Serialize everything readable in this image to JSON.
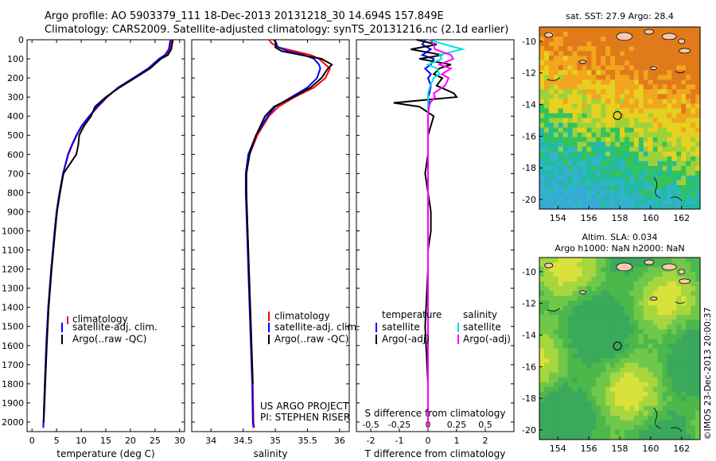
{
  "header": {
    "line1": "Argo profile: AO 5903379_111 18-Dec-2013 20131218_30 14.694S 157.849E",
    "line2": "Climatology: CARS2009. Satellite-adjusted climatology: synTS_20131216.nc (2.1d earlier)"
  },
  "colors": {
    "climatology": "#ff0000",
    "satellite": "#0000ff",
    "argo": "#000000",
    "sat_s": "#00e0e0",
    "argo_s": "#ff00ff"
  },
  "shared_y": {
    "ylim": [
      0,
      2050
    ],
    "ticks": [
      "0",
      "100",
      "200",
      "300",
      "400",
      "500",
      "600",
      "700",
      "800",
      "900",
      "1000",
      "1100",
      "1200",
      "1300",
      "1400",
      "1500",
      "1600",
      "1700",
      "1800",
      "1900",
      "2000"
    ]
  },
  "chart_data": [
    {
      "id": "temperature",
      "type": "line",
      "xlabel": "temperature (deg C)",
      "xlim": [
        -1,
        31
      ],
      "xticks": [
        "0",
        "5",
        "10",
        "15",
        "20",
        "25",
        "30"
      ],
      "legend": {
        "items": [
          "climatology",
          "satellite-adj. clim.",
          "Argo(..raw -QC)"
        ]
      },
      "depth": [
        0,
        20,
        50,
        80,
        100,
        150,
        200,
        250,
        300,
        350,
        400,
        450,
        500,
        550,
        600,
        700,
        800,
        900,
        1000,
        1200,
        1400,
        1600,
        1800,
        2000,
        2030
      ],
      "series": [
        {
          "name": "climatology",
          "values": [
            28.3,
            28.2,
            28.0,
            27.2,
            26.0,
            23.8,
            20.8,
            17.6,
            15.3,
            13.4,
            11.7,
            10.2,
            9.1,
            8.2,
            7.4,
            6.3,
            5.6,
            5.0,
            4.6,
            3.9,
            3.3,
            2.9,
            2.6,
            2.35,
            2.3
          ]
        },
        {
          "name": "satellite-adj. clim.",
          "values": [
            28.1,
            28.0,
            27.8,
            27.0,
            25.8,
            23.6,
            20.6,
            17.5,
            15.2,
            13.3,
            11.6,
            10.1,
            9.0,
            8.1,
            7.3,
            6.3,
            5.6,
            5.0,
            4.6,
            3.9,
            3.3,
            2.9,
            2.6,
            2.35,
            2.3
          ]
        },
        {
          "name": "Argo(..raw -QC)",
          "values": [
            28.6,
            28.5,
            28.3,
            27.6,
            26.2,
            24.0,
            20.9,
            17.8,
            15.0,
            12.8,
            12.0,
            10.6,
            9.6,
            9.4,
            9.0,
            6.4,
            5.7,
            5.1,
            4.7,
            4.0,
            3.4,
            3.0,
            2.7,
            2.4,
            null
          ]
        }
      ]
    },
    {
      "id": "salinity",
      "type": "line",
      "xlabel": "salinity",
      "xlim": [
        33.7,
        36.15
      ],
      "xticks": [
        "34",
        "34.5",
        "35",
        "35.5",
        "36"
      ],
      "legend": {
        "items": [
          "climatology",
          "satellite-adj. clim.",
          "Argo(..raw -QC)"
        ]
      },
      "annotation": [
        "US ARGO PROJECT",
        "PI: STEPHEN RISER"
      ],
      "depth": [
        0,
        20,
        40,
        60,
        80,
        100,
        130,
        150,
        200,
        250,
        300,
        350,
        400,
        500,
        600,
        700,
        800,
        900,
        1000,
        1200,
        1500,
        1800,
        2000,
        2030
      ],
      "series": [
        {
          "name": "climatology",
          "values": [
            34.9,
            34.95,
            35.05,
            35.3,
            35.55,
            35.68,
            35.78,
            35.85,
            35.78,
            35.6,
            35.3,
            35.05,
            34.9,
            34.72,
            34.6,
            34.55,
            34.55,
            34.56,
            34.57,
            34.59,
            34.62,
            34.65,
            34.66,
            34.67
          ]
        },
        {
          "name": "satellite-adj. clim.",
          "values": [
            35.0,
            35.0,
            35.05,
            35.2,
            35.45,
            35.6,
            35.68,
            35.7,
            35.65,
            35.5,
            35.25,
            35.0,
            34.88,
            34.7,
            34.58,
            34.54,
            34.54,
            34.55,
            34.56,
            34.58,
            34.61,
            34.64,
            34.65,
            34.66
          ]
        },
        {
          "name": "Argo(..raw -QC)",
          "values": [
            34.98,
            35.02,
            35.0,
            35.1,
            35.4,
            35.72,
            35.88,
            35.82,
            35.72,
            35.55,
            35.28,
            34.98,
            34.84,
            34.7,
            34.6,
            34.55,
            34.55,
            34.56,
            34.57,
            34.59,
            34.62,
            34.65,
            null,
            null
          ]
        }
      ]
    },
    {
      "id": "differences",
      "type": "line",
      "xlabel": "T difference from climatology",
      "xlabel_top": "S difference from climatology",
      "xlim": [
        -2.5,
        3
      ],
      "xticks": [
        "-2",
        "-1",
        "0",
        "1",
        "2"
      ],
      "xticks_top": [
        "-0.5",
        "-0.25",
        "0",
        "0.25",
        "0.5"
      ],
      "legend": {
        "temperature_title": "temperature",
        "salinity_title": "salinity",
        "temperature_items": [
          "satellite",
          "Argo(-adj)"
        ],
        "salinity_items": [
          "satellite",
          "Argo(-adj)"
        ]
      },
      "depth": [
        0,
        25,
        50,
        80,
        100,
        130,
        150,
        180,
        200,
        240,
        280,
        300,
        330,
        350,
        400,
        500,
        600,
        700,
        800,
        900,
        1000,
        1100,
        1200,
        1500,
        1800,
        2030
      ],
      "series": [
        {
          "name": "T satellite",
          "values": [
            -0.1,
            -0.2,
            0.1,
            -0.2,
            0.2,
            0.1,
            -0.1,
            0.1,
            0.0,
            0.1,
            0.05,
            0.0,
            0.05,
            0.0,
            0.0,
            0.0,
            0.0,
            0.0,
            0.0,
            0.0,
            0.0,
            0.0,
            0.0,
            0.0,
            0.0,
            0.0
          ]
        },
        {
          "name": "T Argo(-adj)",
          "values": [
            -0.4,
            0.3,
            -0.6,
            0.5,
            -0.3,
            0.8,
            0.4,
            0.2,
            0.5,
            0.3,
            0.9,
            1.0,
            -1.2,
            -0.3,
            0.2,
            0.0,
            0.0,
            -0.1,
            0.0,
            0.1,
            0.1,
            0.0,
            0.0,
            -0.1,
            0.0,
            0.0
          ]
        },
        {
          "name": "S satellite",
          "values": [
            0.0,
            0.15,
            0.3,
            0.1,
            0.12,
            0.0,
            0.08,
            0.1,
            0.05,
            0.02,
            0.0,
            0.0,
            0.0,
            0.0,
            0.0,
            0.0,
            0.0,
            0.0,
            0.0,
            0.0,
            0.0,
            0.0,
            0.0,
            0.0,
            0.0,
            0.0
          ]
        },
        {
          "name": "S Argo(-adj)",
          "values": [
            0.02,
            0.05,
            0.06,
            0.2,
            0.22,
            0.1,
            0.2,
            0.12,
            0.18,
            0.15,
            0.05,
            0.06,
            0.02,
            0.01,
            0.0,
            0.0,
            0.0,
            0.0,
            0.0,
            0.0,
            0.0,
            0.0,
            0.0,
            0.0,
            0.0,
            0.0
          ]
        }
      ]
    },
    {
      "id": "sst-map",
      "type": "heatmap",
      "title": "sat. SST: 27.9 Argo: 28.4",
      "xticks": [
        "154",
        "156",
        "158",
        "160",
        "162"
      ],
      "yticks": [
        "-10",
        "-12",
        "-14",
        "-16",
        "-18",
        "-20"
      ],
      "xlim": [
        152.8,
        163.2
      ],
      "ylim": [
        -20.6,
        -9.1
      ],
      "argo_position": [
        157.85,
        -14.69
      ]
    },
    {
      "id": "sla-map",
      "type": "heatmap",
      "title": "Altim. SLA: 0.034",
      "subtitle": "Argo h1000: NaN h2000: NaN",
      "xticks": [
        "154",
        "156",
        "158",
        "160",
        "162"
      ],
      "yticks": [
        "-10",
        "-12",
        "-14",
        "-16",
        "-18",
        "-20"
      ],
      "xlim": [
        152.8,
        163.2
      ],
      "ylim": [
        -20.6,
        -9.1
      ],
      "argo_position": [
        157.85,
        -14.69
      ]
    }
  ],
  "footer": {
    "credit": "©IMOS 23-Dec-2013 20:00:37"
  }
}
